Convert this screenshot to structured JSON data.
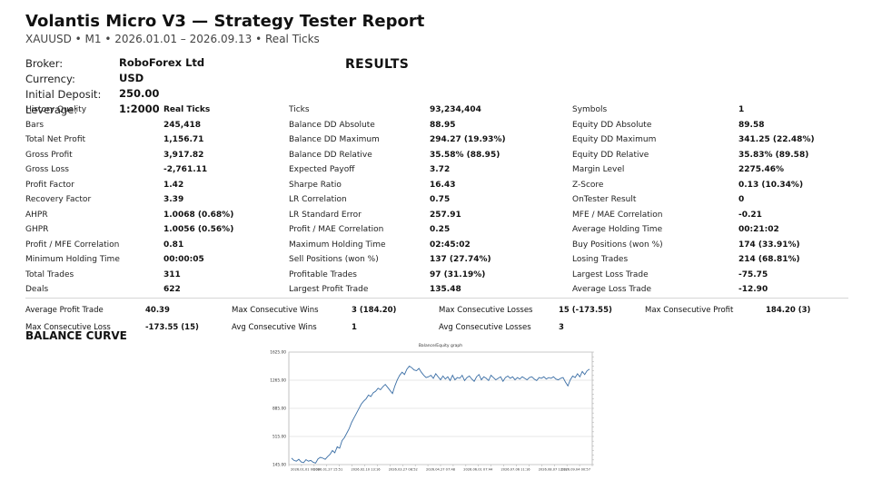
{
  "header": {
    "title": "Volantis Micro V3 — Strategy Tester Report",
    "subtitle": "XAUUSD • M1 • 2026.01.01 – 2026.09.13 • Real Ticks"
  },
  "account": {
    "broker_label": "Broker:",
    "broker": "RoboForex Ltd",
    "currency_label": "Currency:",
    "currency": "USD",
    "deposit_label": "Initial Deposit:",
    "deposit": "250.00",
    "leverage_label": "Leverage:",
    "leverage": "1:2000"
  },
  "results_heading": "RESULTS",
  "results": [
    [
      "History Quality",
      "Real Ticks",
      "Ticks",
      "93,234,404",
      "Symbols",
      "1"
    ],
    [
      "Bars",
      "245,418",
      "Balance DD Absolute",
      "88.95",
      "Equity DD Absolute",
      "89.58"
    ],
    [
      "Total Net Profit",
      "1,156.71",
      "Balance DD Maximum",
      "294.27 (19.93%)",
      "Equity DD Maximum",
      "341.25 (22.48%)"
    ],
    [
      "Gross Profit",
      "3,917.82",
      "Balance DD Relative",
      "35.58% (88.95)",
      "Equity DD Relative",
      "35.83% (89.58)"
    ],
    [
      "Gross Loss",
      "-2,761.11",
      "Expected Payoff",
      "3.72",
      "Margin Level",
      "2275.46%"
    ],
    [
      "Profit Factor",
      "1.42",
      "Sharpe Ratio",
      "16.43",
      "Z-Score",
      "0.13 (10.34%)"
    ],
    [
      "Recovery Factor",
      "3.39",
      "LR Correlation",
      "0.75",
      "OnTester Result",
      "0"
    ],
    [
      "AHPR",
      "1.0068 (0.68%)",
      "LR Standard Error",
      "257.91",
      "MFE / MAE Correlation",
      "-0.21"
    ],
    [
      "GHPR",
      "1.0056 (0.56%)",
      "Profit / MAE Correlation",
      "0.25",
      "Average Holding Time",
      "00:21:02"
    ],
    [
      "Profit / MFE Correlation",
      "0.81",
      "Maximum Holding Time",
      "02:45:02",
      "Buy Positions (won %)",
      "174 (33.91%)"
    ],
    [
      "Minimum Holding Time",
      "00:00:05",
      "Sell Positions (won %)",
      "137 (27.74%)",
      "Losing Trades",
      "214 (68.81%)"
    ],
    [
      "Total Trades",
      "311",
      "Profitable Trades",
      "97 (31.19%)",
      "Largest Loss Trade",
      "-75.75"
    ],
    [
      "Deals",
      "622",
      "Largest Profit Trade",
      "135.48",
      "Average Loss Trade",
      "-12.90"
    ]
  ],
  "consecutive": {
    "row1": [
      [
        "Average Profit Trade",
        "40.39"
      ],
      [
        "Max Consecutive Wins",
        "3 (184.20)"
      ],
      [
        "Max Consecutive Losses",
        "15 (-173.55)"
      ],
      [
        "Max Consecutive Profit",
        "184.20 (3)"
      ]
    ],
    "row2": [
      [
        "Max Consecutive Loss",
        "-173.55 (15)"
      ],
      [
        "Avg Consecutive Wins",
        "1"
      ],
      [
        "Avg Consecutive Losses",
        "3"
      ]
    ]
  },
  "balance_heading": "BALANCE CURVE",
  "chart_data": {
    "type": "line",
    "title": "Balance/Equity graph",
    "y_ticks": [
      "1625.00",
      "1265.00",
      "885.00",
      "515.00",
      "145.00"
    ],
    "ylim": [
      145,
      1625
    ],
    "x_labels": [
      "2026.01.01 00:00",
      "2026.01.27 15:51",
      "2026.02.10 13:16",
      "2026.03.27 08:52",
      "2026.04.27 07:48",
      "2026.06.01 07:44",
      "2026.07.06 11:16",
      "2026.08.07 12:32",
      "2026.09.04 00:57"
    ],
    "grid": true,
    "series": [
      {
        "color": "#3a6ea5",
        "values": [
          230,
          200,
          190,
          215,
          180,
          170,
          210,
          190,
          200,
          175,
          165,
          220,
          240,
          230,
          215,
          250,
          280,
          330,
          300,
          380,
          360,
          460,
          500,
          560,
          620,
          700,
          760,
          820,
          880,
          940,
          980,
          1010,
          1060,
          1040,
          1090,
          1110,
          1150,
          1130,
          1170,
          1200,
          1160,
          1120,
          1080,
          1180,
          1260,
          1320,
          1360,
          1330,
          1400,
          1440,
          1420,
          1390,
          1380,
          1410,
          1360,
          1320,
          1290,
          1300,
          1320,
          1280,
          1340,
          1300,
          1260,
          1310,
          1270,
          1300,
          1250,
          1320,
          1260,
          1290,
          1280,
          1320,
          1250,
          1290,
          1310,
          1270,
          1240,
          1300,
          1330,
          1260,
          1300,
          1280,
          1250,
          1320,
          1290,
          1260,
          1280,
          1300,
          1240,
          1290,
          1310,
          1280,
          1300,
          1260,
          1290,
          1270,
          1300,
          1280,
          1260,
          1290,
          1300,
          1270,
          1250,
          1290,
          1280,
          1300,
          1270,
          1290,
          1280,
          1300,
          1270,
          1260,
          1280,
          1290,
          1230,
          1180,
          1260,
          1310,
          1290,
          1340,
          1300,
          1370,
          1330,
          1380,
          1400
        ]
      }
    ]
  },
  "colors": {
    "line": "#3a6ea5",
    "grid": "#cfcfcf",
    "divider": "#d6d6d6"
  }
}
